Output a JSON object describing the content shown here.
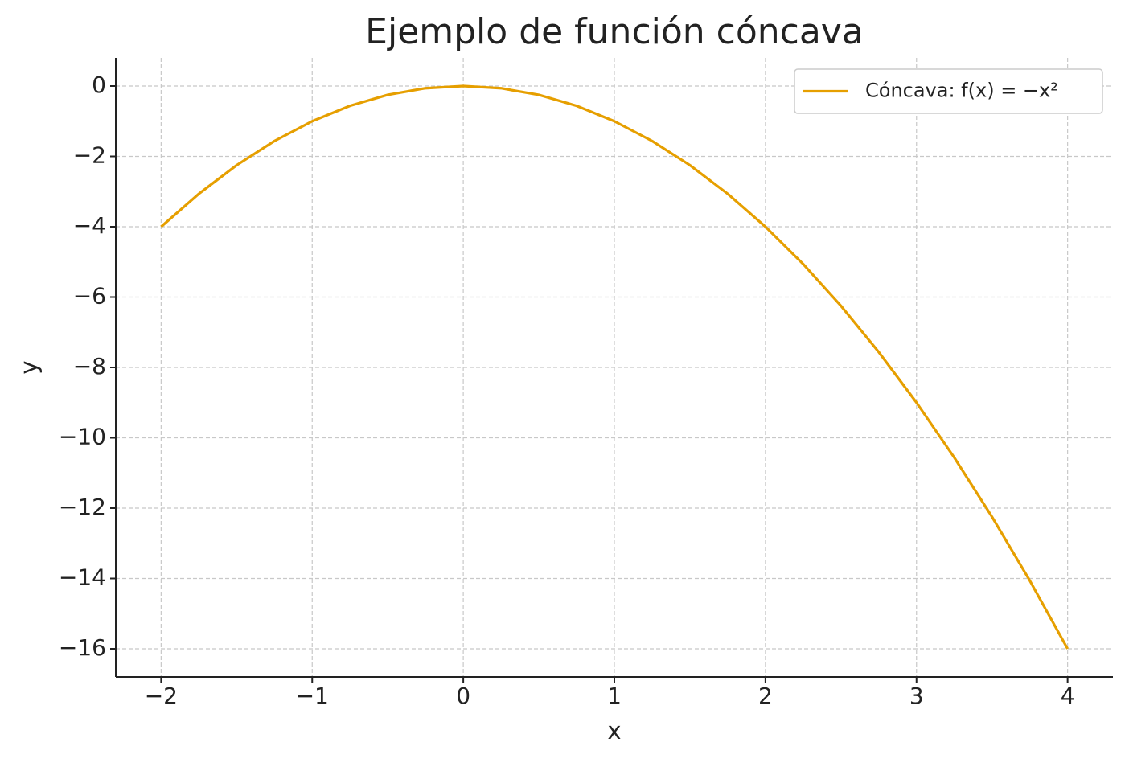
{
  "chart_data": {
    "type": "line",
    "title": "Ejemplo de función cóncava",
    "x_label": "x",
    "y_label": "y",
    "x": [
      -2,
      -1.75,
      -1.5,
      -1.25,
      -1,
      -0.75,
      -0.5,
      -0.25,
      0,
      0.25,
      0.5,
      0.75,
      1,
      1.25,
      1.5,
      1.75,
      2,
      2.25,
      2.5,
      2.75,
      3,
      3.25,
      3.5,
      3.75,
      4
    ],
    "series": [
      {
        "name": "Cóncava: f(x) = −x²",
        "color": "#e69f00",
        "values": [
          -4,
          -3.0625,
          -2.25,
          -1.5625,
          -1,
          -0.5625,
          -0.25,
          -0.0625,
          0,
          -0.0625,
          -0.25,
          -0.5625,
          -1,
          -1.5625,
          -2.25,
          -3.0625,
          -4,
          -5.0625,
          -6.25,
          -7.5625,
          -9,
          -10.5625,
          -12.25,
          -14.0625,
          -16
        ]
      }
    ],
    "xlim": [
      -2.3,
      4.3
    ],
    "ylim": [
      -16.8,
      0.8
    ],
    "xticks": [
      {
        "value": -2,
        "label": "−2"
      },
      {
        "value": -1,
        "label": "−1"
      },
      0,
      1,
      2,
      3,
      4
    ],
    "yticks": [
      0,
      {
        "value": -2,
        "label": "−2"
      },
      {
        "value": -4,
        "label": "−4"
      },
      {
        "value": -6,
        "label": "−6"
      },
      {
        "value": -8,
        "label": "−8"
      },
      {
        "value": -10,
        "label": "−10"
      },
      {
        "value": -12,
        "label": "−12"
      },
      {
        "value": -14,
        "label": "−14"
      },
      {
        "value": -16,
        "label": "−16"
      }
    ],
    "grid": true,
    "legend": "upper right"
  }
}
